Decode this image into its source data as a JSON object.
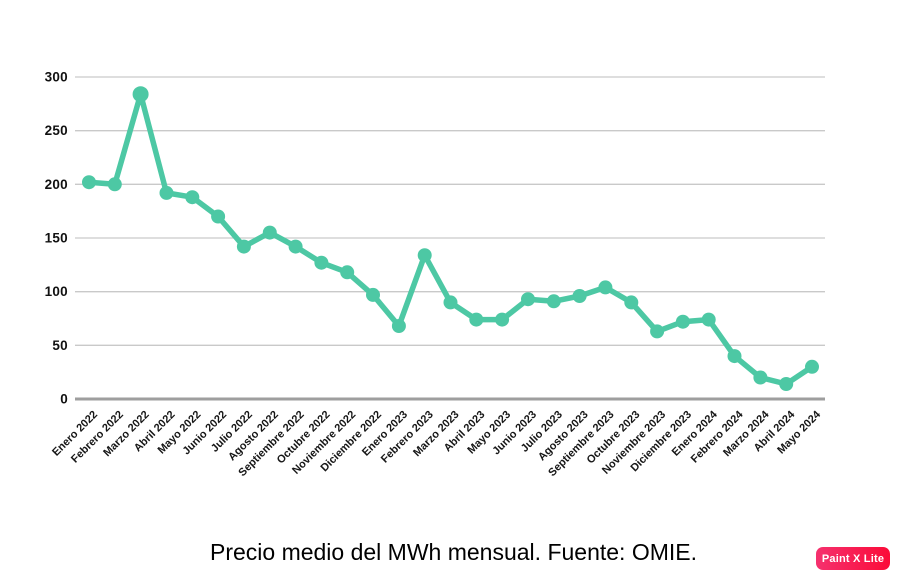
{
  "chart_data": {
    "type": "line",
    "title": "Precio medio del MWh mensual. Fuente: OMIE.",
    "categories": [
      "Enero 2022",
      "Febrero 2022",
      "Marzo 2022",
      "Abril 2022",
      "Mayo 2022",
      "Junio 2022",
      "Julio 2022",
      "Agosto 2022",
      "Septiembre 2022",
      "Octubre 2022",
      "Noviembre 2022",
      "Diciembre 2022",
      "Enero 2023",
      "Febrero 2023",
      "Marzo 2023",
      "Abril 2023",
      "Mayo 2023",
      "Junio 2023",
      "Julio 2023",
      "Agosto 2023",
      "Septiembre 2023",
      "Octubre 2023",
      "Noviembre 2023",
      "Diciembre 2023",
      "Enero 2024",
      "Febrero 2024",
      "Marzo 2024",
      "Abril 2024",
      "Mayo 2024"
    ],
    "series": [
      {
        "name": "Precio medio del MWh",
        "values": [
          202,
          200,
          284,
          192,
          188,
          170,
          142,
          155,
          142,
          127,
          118,
          97,
          68,
          134,
          90,
          74,
          74,
          93,
          91,
          96,
          104,
          90,
          63,
          72,
          74,
          40,
          20,
          14,
          30
        ]
      }
    ],
    "xlabel": "",
    "ylabel": "",
    "ylim": [
      0,
      300
    ],
    "yticks": [
      0,
      50,
      100,
      150,
      200,
      250,
      300
    ],
    "grid": true,
    "legend_position": "none",
    "line_color": "#4DC8A4",
    "gridline_color": "#C9C9C9",
    "axis_line_color": "#9E9E9E",
    "tick_label_color": "#111111"
  },
  "watermark": {
    "label": "Paint X Lite",
    "gradient_left": "#F5316E",
    "gradient_right": "#FB0B38",
    "text_color": "#FFFFFF"
  }
}
